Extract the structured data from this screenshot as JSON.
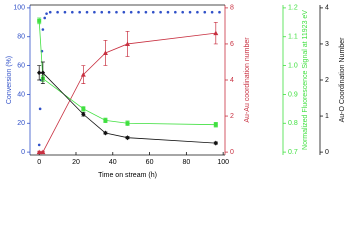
{
  "chart_data": {
    "type": "line",
    "xlabel": "Time on stream (h)",
    "ylabel": "Conversion (%)",
    "y2label": "Au-Au coordination number",
    "y3label": "Normalized Fluorescence Signal at 11923 eV",
    "y4label": "Au-O Coordination Number",
    "xlim": [
      -5,
      101
    ],
    "xticks": [
      0,
      20,
      40,
      60,
      80,
      100
    ],
    "ylim": [
      -2,
      102
    ],
    "yticks": [
      0,
      20,
      40,
      60,
      80,
      100
    ],
    "y2lim": [
      -0.16,
      8.16
    ],
    "y2ticks": [
      0,
      2,
      4,
      6,
      8
    ],
    "y3lim": [
      0.69,
      1.21
    ],
    "y3ticks": [
      {
        "value": 0.7,
        "label": "0.7"
      },
      {
        "value": 0.8,
        "label": "0.8"
      },
      {
        "value": 0.9,
        "label": "0.9"
      },
      {
        "value": 1.0,
        "label": "1.0"
      },
      {
        "value": 1.1,
        "label": "1.1"
      },
      {
        "value": 1.2,
        "label": "1.2"
      }
    ],
    "y4lim": [
      -0.08,
      4.08
    ],
    "y4ticks": [
      0,
      1,
      2,
      3,
      4
    ],
    "series": [
      {
        "axis": "y",
        "color": "#3050c8",
        "marker": "dot",
        "x": [
          0,
          0.5,
          1,
          1.5,
          2,
          3,
          4,
          6,
          10,
          14,
          18,
          22,
          26,
          30,
          34,
          38,
          42,
          46,
          50,
          54,
          58,
          62,
          66,
          70,
          74,
          78,
          82,
          86,
          90,
          94,
          98
        ],
        "values": [
          5,
          30,
          50,
          70,
          85,
          93,
          96,
          97,
          97,
          97,
          97,
          97,
          97,
          97,
          97,
          97,
          97,
          97,
          97,
          97,
          97,
          97,
          97,
          97,
          97,
          97,
          97,
          97,
          97,
          97,
          97
        ]
      },
      {
        "axis": "y2",
        "color": "#c83040",
        "marker": "triangle",
        "x": [
          0,
          2,
          24,
          36,
          48,
          96
        ],
        "values": [
          0,
          0,
          4.3,
          5.5,
          6.0,
          6.6
        ],
        "errors": [
          0.05,
          0.05,
          0.5,
          0.7,
          0.7,
          0.6
        ]
      },
      {
        "axis": "y3",
        "color": "#40e040",
        "marker": "square",
        "x": [
          0,
          2,
          24,
          36,
          48,
          96
        ],
        "values": [
          1.155,
          0.955,
          0.85,
          0.81,
          0.8,
          0.795
        ],
        "errors": [
          0.01,
          0.01,
          0.008,
          0.008,
          0.008,
          0.008
        ]
      },
      {
        "axis": "y4",
        "color": "#111111",
        "marker": "diamond",
        "x": [
          0,
          2,
          24,
          36,
          48,
          96
        ],
        "values": [
          2.2,
          2.2,
          1.05,
          0.53,
          0.4,
          0.25
        ],
        "errors": [
          0.2,
          0.3,
          0.05,
          0.03,
          0.03,
          0.03
        ]
      }
    ]
  }
}
